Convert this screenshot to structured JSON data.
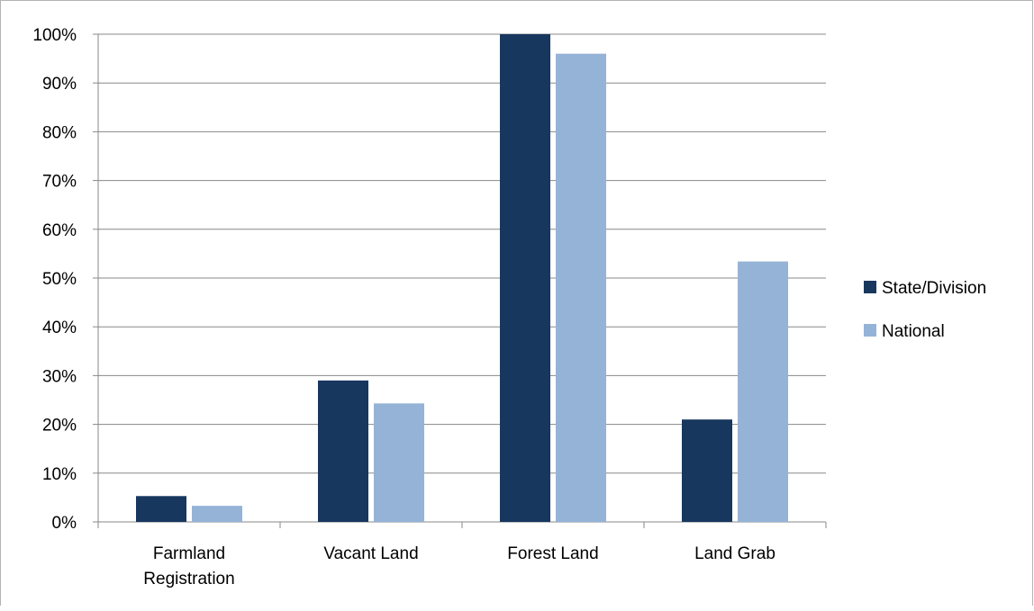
{
  "chart_data": {
    "type": "bar",
    "title": "",
    "xlabel": "",
    "ylabel": "",
    "categories": [
      [
        "Farmland",
        "Registration"
      ],
      [
        "Vacant Land"
      ],
      [
        "Forest Land"
      ],
      [
        "Land Grab"
      ]
    ],
    "series": [
      {
        "name": "State/Division",
        "values": [
          5.3,
          29.0,
          100.0,
          21.0
        ],
        "color": "#17375e"
      },
      {
        "name": "National",
        "values": [
          3.3,
          24.3,
          96.0,
          53.4
        ],
        "color": "#95b3d7"
      }
    ],
    "ylim": [
      0,
      100
    ],
    "yticks": [
      "0%",
      "10%",
      "20%",
      "30%",
      "40%",
      "50%",
      "60%",
      "70%",
      "80%",
      "90%",
      "100%"
    ],
    "grid": true,
    "legend_position": "right"
  }
}
